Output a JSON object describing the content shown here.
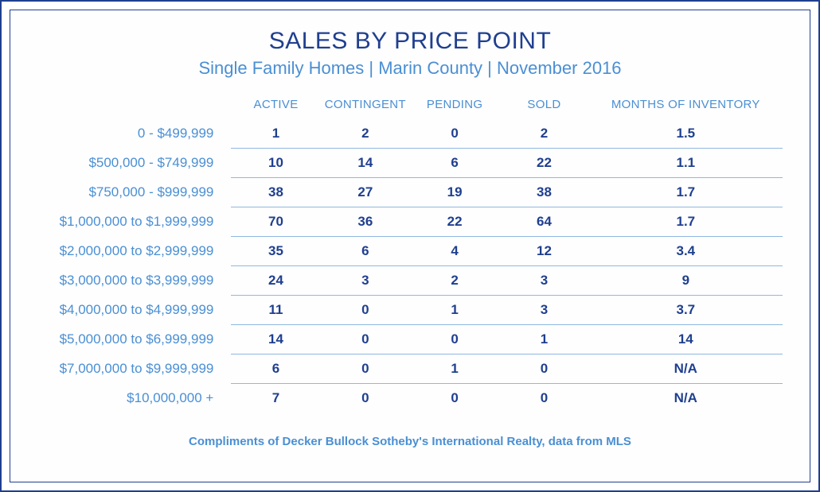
{
  "title": "SALES BY PRICE POINT",
  "subtitle": "Single Family Homes | Marin County | November 2016",
  "columns": [
    "ACTIVE",
    "CONTINGENT",
    "PENDING",
    "SOLD",
    "MONTHS OF INVENTORY"
  ],
  "rows": [
    {
      "label": "0 - $499,999",
      "values": [
        "1",
        "2",
        "0",
        "2",
        "1.5"
      ]
    },
    {
      "label": "$500,000 - $749,999",
      "values": [
        "10",
        "14",
        "6",
        "22",
        "1.1"
      ]
    },
    {
      "label": "$750,000 - $999,999",
      "values": [
        "38",
        "27",
        "19",
        "38",
        "1.7"
      ]
    },
    {
      "label": "$1,000,000 to $1,999,999",
      "values": [
        "70",
        "36",
        "22",
        "64",
        "1.7"
      ]
    },
    {
      "label": "$2,000,000 to $2,999,999",
      "values": [
        "35",
        "6",
        "4",
        "12",
        "3.4"
      ]
    },
    {
      "label": "$3,000,000 to $3,999,999",
      "values": [
        "24",
        "3",
        "2",
        "3",
        "9"
      ]
    },
    {
      "label": "$4,000,000 to $4,999,999",
      "values": [
        "11",
        "0",
        "1",
        "3",
        "3.7"
      ]
    },
    {
      "label": "$5,000,000 to $6,999,999",
      "values": [
        "14",
        "0",
        "0",
        "1",
        "14"
      ]
    },
    {
      "label": "$7,000,000 to $9,999,999",
      "values": [
        "6",
        "0",
        "1",
        "0",
        "N/A"
      ]
    },
    {
      "label": "$10,000,000 +",
      "values": [
        "7",
        "0",
        "0",
        "0",
        "N/A"
      ]
    }
  ],
  "footer": "Compliments of Decker Bullock Sotheby's International Realty, data from MLS",
  "style": {
    "type": "table",
    "outer_border_color": "#1f3f8f",
    "inner_border_color": "#1f3f8f",
    "row_divider_color": "#8fb8e0",
    "title_color": "#1f3f8f",
    "subtitle_color": "#4a8fd4",
    "header_text_color": "#4a8fd4",
    "row_label_color": "#4a8fd4",
    "cell_text_color": "#1f3f8f",
    "background_color": "#ffffff",
    "title_fontsize": 30,
    "subtitle_fontsize": 22,
    "header_fontsize": 15,
    "cell_fontsize": 17,
    "footer_fontsize": 15,
    "column_widths_pct": [
      26,
      12,
      12,
      12,
      12,
      26
    ]
  }
}
